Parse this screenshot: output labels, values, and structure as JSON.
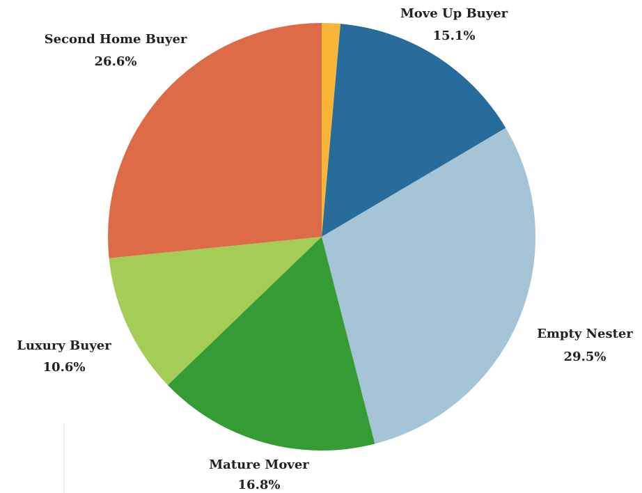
{
  "chart_data": {
    "type": "pie",
    "categories": [
      null,
      "Move Up Buyer",
      "Empty Nester",
      "Mature Mover",
      "Luxury Buyer",
      "Second Home Buyer"
    ],
    "values": [
      1.4,
      15.1,
      29.5,
      16.8,
      10.6,
      26.6
    ],
    "value_labels": [
      null,
      "15.1%",
      "29.5%",
      "16.8%",
      "10.6%",
      "26.6%"
    ],
    "colors": [
      "#f8b538",
      "#276c9b",
      "#a5c5d6",
      "#349b35",
      "#a5cc57",
      "#de6b48"
    ]
  }
}
